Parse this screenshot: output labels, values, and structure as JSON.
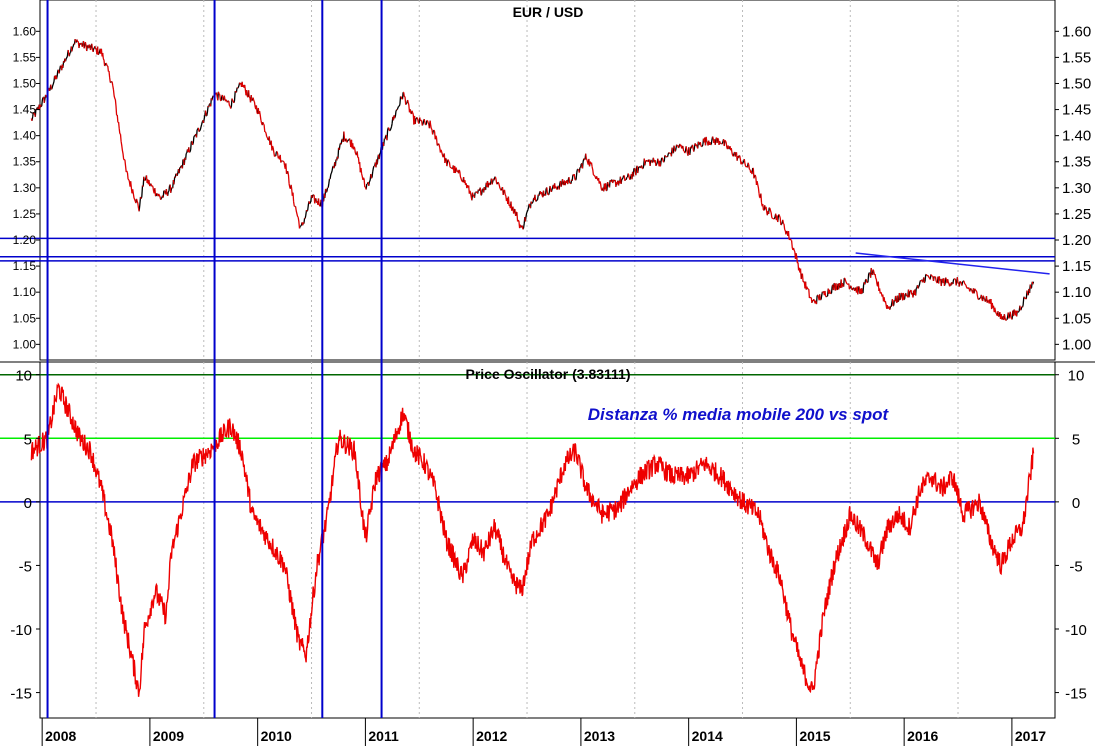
{
  "chart_data": [
    {
      "type": "line",
      "title": "EUR / USD",
      "ylim": [
        0.97,
        1.66
      ],
      "y_ticks": [
        "1.00",
        "1.05",
        "1.10",
        "1.15",
        "1.20",
        "1.25",
        "1.30",
        "1.35",
        "1.40",
        "1.45",
        "1.50",
        "1.55",
        "1.60"
      ],
      "x_labels": [
        "2008",
        "2009",
        "2010",
        "2011",
        "2012",
        "2013",
        "2014",
        "2015",
        "2016",
        "2017"
      ],
      "colors": {
        "up": "#000000",
        "down": "#dd0000"
      },
      "series": [
        {
          "x": [
            2007.9,
            2008.05,
            2008.3,
            2008.55,
            2008.65,
            2008.78,
            2008.9,
            2008.95,
            2009.1,
            2009.2,
            2009.45,
            2009.6,
            2009.75,
            2009.85,
            2010.0,
            2010.15,
            2010.25,
            2010.4,
            2010.5,
            2010.6,
            2010.8,
            2010.9,
            2011.0,
            2011.05,
            2011.2,
            2011.35,
            2011.45,
            2011.6,
            2011.75,
            2011.9,
            2012.0,
            2012.2,
            2012.4,
            2012.45,
            2012.55,
            2012.75,
            2012.95,
            2013.05,
            2013.2,
            2013.45,
            2013.6,
            2013.75,
            2013.9,
            2014.0,
            2014.15,
            2014.3,
            2014.45,
            2014.6,
            2014.7,
            2014.85,
            2014.95,
            2015.05,
            2015.15,
            2015.35,
            2015.45,
            2015.6,
            2015.7,
            2015.85,
            2015.95,
            2016.1,
            2016.2,
            2016.35,
            2016.5,
            2016.65,
            2016.8,
            2016.9,
            2017.05,
            2017.2
          ],
          "y": [
            1.43,
            1.48,
            1.58,
            1.56,
            1.5,
            1.33,
            1.26,
            1.32,
            1.28,
            1.3,
            1.41,
            1.48,
            1.46,
            1.5,
            1.45,
            1.37,
            1.35,
            1.22,
            1.28,
            1.27,
            1.4,
            1.38,
            1.3,
            1.32,
            1.4,
            1.48,
            1.43,
            1.42,
            1.35,
            1.32,
            1.28,
            1.32,
            1.25,
            1.22,
            1.28,
            1.3,
            1.32,
            1.36,
            1.3,
            1.32,
            1.35,
            1.35,
            1.38,
            1.37,
            1.39,
            1.39,
            1.36,
            1.33,
            1.26,
            1.24,
            1.2,
            1.13,
            1.08,
            1.11,
            1.12,
            1.1,
            1.14,
            1.07,
            1.09,
            1.1,
            1.13,
            1.12,
            1.12,
            1.1,
            1.08,
            1.05,
            1.06,
            1.12
          ]
        }
      ],
      "hlines": [
        1.203,
        1.168,
        1.16
      ],
      "trendline": {
        "x": [
          2015.55,
          2017.35
        ],
        "y": [
          1.175,
          1.135
        ]
      }
    },
    {
      "type": "line",
      "title": "Price Oscillator (3.83111)",
      "annotation": "Distanza % media mobile 200 vs spot",
      "ylim": [
        -17,
        11
      ],
      "y_ticks": [
        "10",
        "5",
        "0",
        "-5",
        "-10",
        "-15"
      ],
      "colors": {
        "line": "#ee0000",
        "zero": "#0000cc",
        "upper": "#006600",
        "mid": "#00ee00"
      },
      "series": [
        {
          "x": [
            2007.9,
            2008.05,
            2008.15,
            2008.35,
            2008.45,
            2008.55,
            2008.65,
            2008.75,
            2008.85,
            2008.9,
            2008.95,
            2009.05,
            2009.15,
            2009.2,
            2009.4,
            2009.55,
            2009.65,
            2009.75,
            2009.85,
            2009.95,
            2010.1,
            2010.25,
            2010.38,
            2010.45,
            2010.55,
            2010.65,
            2010.75,
            2010.9,
            2011.0,
            2011.1,
            2011.2,
            2011.35,
            2011.45,
            2011.55,
            2011.65,
            2011.75,
            2011.9,
            2012.0,
            2012.1,
            2012.2,
            2012.35,
            2012.45,
            2012.55,
            2012.7,
            2012.85,
            2012.95,
            2013.05,
            2013.2,
            2013.35,
            2013.45,
            2013.55,
            2013.7,
            2013.85,
            2014.0,
            2014.15,
            2014.3,
            2014.5,
            2014.65,
            2014.75,
            2014.85,
            2014.95,
            2015.05,
            2015.15,
            2015.25,
            2015.35,
            2015.5,
            2015.65,
            2015.75,
            2015.85,
            2015.95,
            2016.05,
            2016.15,
            2016.25,
            2016.35,
            2016.45,
            2016.55,
            2016.7,
            2016.8,
            2016.9,
            2017.0,
            2017.1,
            2017.2
          ],
          "y": [
            4,
            5,
            9,
            5,
            4,
            1,
            -3,
            -9,
            -13,
            -15,
            -10,
            -7,
            -9,
            -4,
            3,
            4,
            5,
            6,
            4,
            -1,
            -3,
            -5,
            -11,
            -12,
            -5,
            -1,
            5,
            4,
            -3,
            2,
            3,
            7,
            4,
            3,
            1,
            -3,
            -6,
            -3,
            -4,
            -2,
            -6,
            -7,
            -3,
            -1,
            3,
            4,
            1,
            -1,
            -0.5,
            1,
            2,
            3,
            2,
            2,
            3,
            2,
            0,
            -1,
            -4,
            -6,
            -10,
            -13,
            -15,
            -9,
            -5,
            -1,
            -3,
            -5,
            -2,
            -1,
            -2,
            1,
            2,
            1,
            2,
            -1,
            0,
            -3,
            -5,
            -3,
            -2,
            3.8
          ]
        }
      ],
      "hlines": [
        10,
        5,
        0
      ]
    }
  ],
  "vlines": [
    2008.05,
    2009.6,
    2010.6,
    2011.15
  ],
  "x_range": [
    2007.98,
    2017.4
  ]
}
